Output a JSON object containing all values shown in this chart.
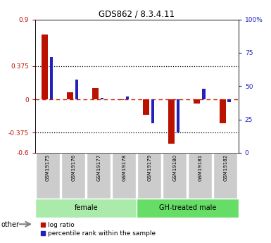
{
  "title": "GDS862 / 8.3.4.11",
  "samples": [
    "GSM19175",
    "GSM19176",
    "GSM19177",
    "GSM19178",
    "GSM19179",
    "GSM19180",
    "GSM19181",
    "GSM19182"
  ],
  "log_ratio": [
    0.73,
    0.08,
    0.13,
    -0.01,
    -0.17,
    -0.5,
    -0.05,
    -0.27
  ],
  "percentile": [
    82,
    65,
    51,
    52,
    32,
    25,
    58,
    48
  ],
  "ylim_left": [
    -0.6,
    0.9
  ],
  "ylim_right": [
    0,
    100
  ],
  "yticks_left": [
    -0.6,
    -0.375,
    0,
    0.375,
    0.9
  ],
  "ytick_labels_left": [
    "-0.6",
    "-0.375",
    "0",
    "0.375",
    "0.9"
  ],
  "yticks_right": [
    0,
    25,
    50,
    75,
    100
  ],
  "ytick_labels_right": [
    "0",
    "25",
    "50",
    "75",
    "100%"
  ],
  "hlines": [
    0.375,
    -0.375
  ],
  "groups": [
    {
      "label": "female",
      "start": 0,
      "end": 4,
      "color": "#aaeaaa"
    },
    {
      "label": "GH-treated male",
      "start": 4,
      "end": 8,
      "color": "#66dd66"
    }
  ],
  "red_color": "#BB1100",
  "blue_color": "#2222BB",
  "dashed_line_color": "#CC2200",
  "dotted_line_color": "#000000",
  "bg_color": "#FFFFFF",
  "legend_labels": [
    "log ratio",
    "percentile rank within the sample"
  ],
  "other_label": "other",
  "tick_label_bg": "#CCCCCC",
  "red_bar_width": 0.25,
  "blue_bar_width": 0.12
}
